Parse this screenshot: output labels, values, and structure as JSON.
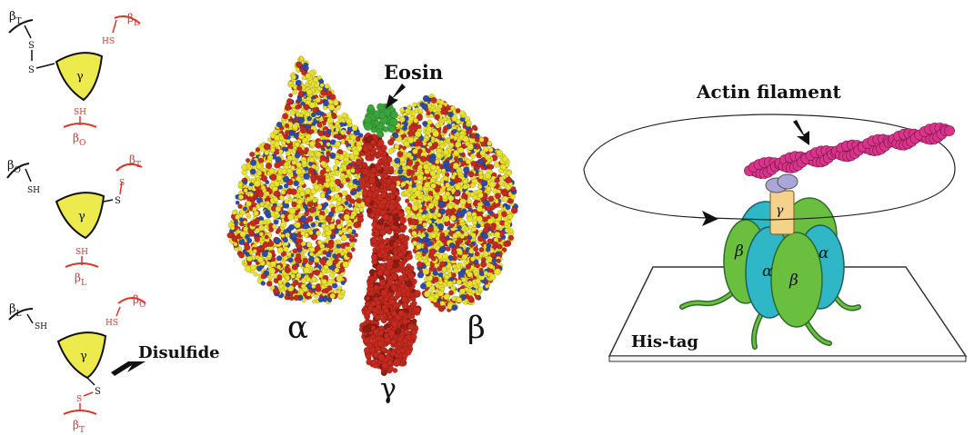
{
  "colors": {
    "red": "#d9352b",
    "gamma_yellow": "#ecea4c",
    "atom_yellow": "#e8e22c",
    "atom_red": "#c62a1e",
    "atom_blue": "#2e4ba8",
    "eosin_green": "#3aa53a",
    "actin_pink": "#d6358a",
    "alpha_teal": "#2fb7c7",
    "beta_green": "#6bbf3f",
    "gamma_peach": "#f5d28c",
    "link_lavender": "#a9a7d8"
  },
  "left_panel": {
    "schemes": [
      {
        "top_left": {
          "greek": "β",
          "sub": "T",
          "group": "S"
        },
        "top_right": {
          "greek": "β",
          "sub": "L",
          "group": "HS"
        },
        "bottom": {
          "greek": "β",
          "sub": "O",
          "group": "SH"
        },
        "gamma": "γ",
        "gamma_link": "S"
      },
      {
        "top_left": {
          "greek": "β",
          "sub": "O",
          "group": "SH"
        },
        "top_right": {
          "greek": "β",
          "sub": "T",
          "group": "S"
        },
        "bottom": {
          "greek": "β",
          "sub": "L",
          "group": "SH"
        },
        "gamma": "γ",
        "gamma_link": "S"
      },
      {
        "top_left": {
          "greek": "β",
          "sub": "L",
          "group": "SH"
        },
        "top_right": {
          "greek": "β",
          "sub": "O",
          "group": "HS"
        },
        "bottom": {
          "greek": "β",
          "sub": "T",
          "group": "S"
        },
        "gamma": "γ",
        "gamma_link": "S"
      }
    ],
    "disulfide_label": "Disulfide"
  },
  "middle_panel": {
    "eosin_label": "Eosin",
    "alpha_label": "α",
    "beta_label": "β",
    "gamma_label": "γ"
  },
  "right_panel": {
    "actin_label": "Actin filament",
    "histag_label": "His-tag",
    "subunits": {
      "gamma": "γ",
      "beta_left": "β",
      "alpha_left": "α",
      "beta_center": "β",
      "alpha_right": "α"
    }
  }
}
